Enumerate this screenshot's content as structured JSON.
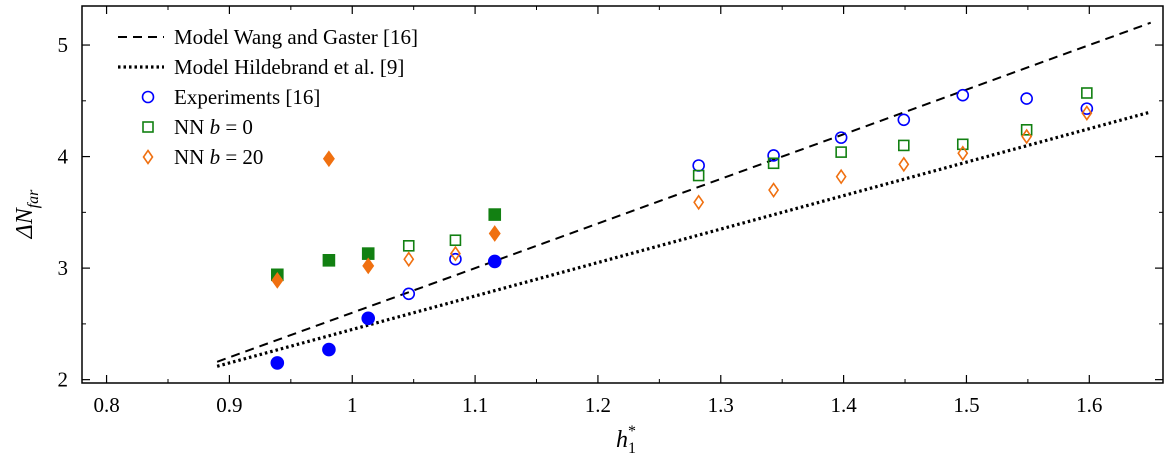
{
  "chart_data": {
    "type": "scatter",
    "xlabel": "h",
    "xlabel_sub": "1",
    "xlabel_sup": "*",
    "ylabel": "ΔN",
    "ylabel_sub": "far",
    "xlim": [
      0.78,
      1.66
    ],
    "ylim": [
      1.97,
      5.35
    ],
    "x_ticks": [
      0.8,
      0.9,
      1.0,
      1.1,
      1.2,
      1.3,
      1.4,
      1.5,
      1.6
    ],
    "x_tick_labels": [
      "0.8",
      "0.9",
      "1",
      "1.1",
      "1.2",
      "1.3",
      "1.4",
      "1.5",
      "1.6"
    ],
    "y_ticks": [
      2,
      3,
      4,
      5
    ],
    "y_tick_labels": [
      "2",
      "3",
      "4",
      "5"
    ],
    "grid": false,
    "legend_position": "top-left",
    "series": [
      {
        "name": "Model Wang and Gaster [16]",
        "kind": "line",
        "style": "dashed",
        "color": "#000000",
        "points": [
          [
            0.89,
            2.16
          ],
          [
            1.65,
            5.2
          ]
        ]
      },
      {
        "name": "Model Hildebrand et al. [9]",
        "kind": "line",
        "style": "dotted",
        "color": "#000000",
        "points": [
          [
            0.89,
            2.12
          ],
          [
            1.65,
            4.4
          ]
        ]
      },
      {
        "name": "Experiments [16]",
        "kind": "marker",
        "marker": "circle",
        "color": "#0000ff",
        "points": [
          {
            "x": 0.939,
            "y": 2.15,
            "filled": true
          },
          {
            "x": 0.981,
            "y": 2.27,
            "filled": true
          },
          {
            "x": 1.013,
            "y": 2.55,
            "filled": true
          },
          {
            "x": 1.046,
            "y": 2.77,
            "filled": false
          },
          {
            "x": 1.084,
            "y": 3.08,
            "filled": false
          },
          {
            "x": 1.116,
            "y": 3.06,
            "filled": true
          },
          {
            "x": 1.282,
            "y": 3.92,
            "filled": false
          },
          {
            "x": 1.343,
            "y": 4.01,
            "filled": false
          },
          {
            "x": 1.398,
            "y": 4.17,
            "filled": false
          },
          {
            "x": 1.449,
            "y": 4.33,
            "filled": false
          },
          {
            "x": 1.497,
            "y": 4.55,
            "filled": false
          },
          {
            "x": 1.549,
            "y": 4.52,
            "filled": false
          },
          {
            "x": 1.598,
            "y": 4.43,
            "filled": false
          }
        ]
      },
      {
        "name": "NN b = 0",
        "kind": "marker",
        "marker": "square",
        "color": "#128012",
        "points": [
          {
            "x": 0.939,
            "y": 2.94,
            "filled": true
          },
          {
            "x": 0.981,
            "y": 3.07,
            "filled": true
          },
          {
            "x": 1.013,
            "y": 3.13,
            "filled": true
          },
          {
            "x": 1.046,
            "y": 3.2,
            "filled": false
          },
          {
            "x": 1.084,
            "y": 3.25,
            "filled": false
          },
          {
            "x": 1.116,
            "y": 3.48,
            "filled": true
          },
          {
            "x": 1.282,
            "y": 3.83,
            "filled": false
          },
          {
            "x": 1.343,
            "y": 3.94,
            "filled": false
          },
          {
            "x": 1.398,
            "y": 4.04,
            "filled": false
          },
          {
            "x": 1.449,
            "y": 4.1,
            "filled": false
          },
          {
            "x": 1.497,
            "y": 4.11,
            "filled": false
          },
          {
            "x": 1.549,
            "y": 4.24,
            "filled": false
          },
          {
            "x": 1.598,
            "y": 4.57,
            "filled": false
          }
        ]
      },
      {
        "name": "NN b = 20",
        "kind": "marker",
        "marker": "diamond",
        "color": "#f07010",
        "points": [
          {
            "x": 0.939,
            "y": 2.89,
            "filled": true
          },
          {
            "x": 0.981,
            "y": 3.98,
            "filled": true
          },
          {
            "x": 1.013,
            "y": 3.02,
            "filled": true
          },
          {
            "x": 1.046,
            "y": 3.08,
            "filled": false
          },
          {
            "x": 1.084,
            "y": 3.13,
            "filled": false
          },
          {
            "x": 1.116,
            "y": 3.31,
            "filled": true
          },
          {
            "x": 1.282,
            "y": 3.59,
            "filled": false
          },
          {
            "x": 1.343,
            "y": 3.7,
            "filled": false
          },
          {
            "x": 1.398,
            "y": 3.82,
            "filled": false
          },
          {
            "x": 1.449,
            "y": 3.93,
            "filled": false
          },
          {
            "x": 1.497,
            "y": 4.03,
            "filled": false
          },
          {
            "x": 1.549,
            "y": 4.18,
            "filled": false
          },
          {
            "x": 1.598,
            "y": 4.39,
            "filled": false
          }
        ]
      }
    ],
    "legend": [
      {
        "series": 0,
        "text": "Model Wang and Gaster [16]"
      },
      {
        "series": 1,
        "text": "Model Hildebrand et al. [9]"
      },
      {
        "series": 2,
        "text": "Experiments [16]"
      },
      {
        "series": 3,
        "prefix": "NN ",
        "var": "b",
        "suffix": " = 0"
      },
      {
        "series": 4,
        "prefix": "NN ",
        "var": "b",
        "suffix": " = 20"
      }
    ]
  }
}
